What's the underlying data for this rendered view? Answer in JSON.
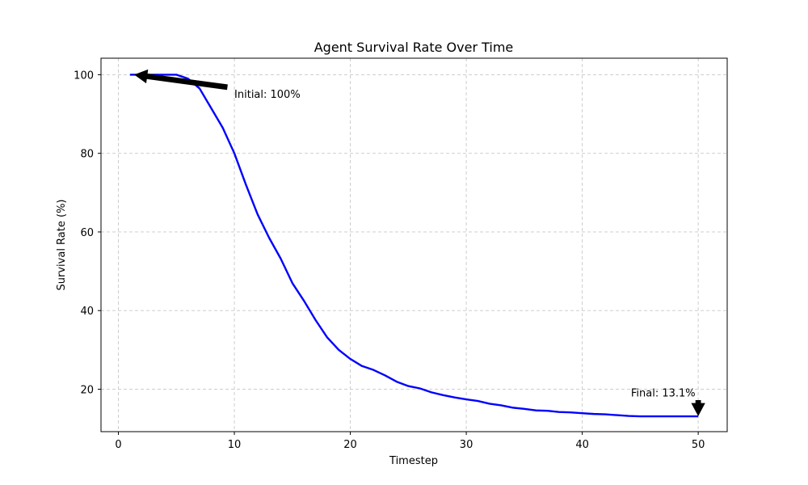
{
  "chart_data": {
    "type": "line",
    "title": "Agent Survival Rate Over Time",
    "xlabel": "Timestep",
    "ylabel": "Survival Rate (%)",
    "xlim": [
      -1.5,
      52.5
    ],
    "ylim": [
      9.2,
      104.2
    ],
    "xticks": [
      0,
      10,
      20,
      30,
      40,
      50
    ],
    "yticks": [
      20,
      40,
      60,
      80,
      100
    ],
    "grid": true,
    "line_color": "#0000ff",
    "series": [
      {
        "x": [
          1,
          2,
          3,
          4,
          5,
          6,
          7,
          8,
          9,
          10,
          11,
          12,
          13,
          14,
          15,
          16,
          17,
          18,
          19,
          20,
          21,
          22,
          23,
          24,
          25,
          26,
          27,
          28,
          29,
          30,
          31,
          32,
          33,
          34,
          35,
          36,
          37,
          38,
          39,
          40,
          41,
          42,
          43,
          44,
          45,
          46,
          47,
          48,
          49,
          50
        ],
        "y": [
          100,
          100,
          100,
          100,
          100,
          99,
          96.5,
          91.5,
          86.5,
          80,
          72,
          64.5,
          58.5,
          53.2,
          47,
          42.5,
          37.6,
          33.2,
          30,
          27.7,
          25.9,
          24.9,
          23.5,
          21.9,
          20.8,
          20.2,
          19.2,
          18.5,
          17.9,
          17.4,
          17,
          16.3,
          15.9,
          15.3,
          15,
          14.6,
          14.5,
          14.2,
          14.1,
          13.9,
          13.7,
          13.6,
          13.4,
          13.2,
          13.1,
          13.1,
          13.1,
          13.1,
          13.1,
          13.1
        ]
      }
    ],
    "annotations": [
      {
        "text": "Initial: 100%",
        "point": [
          1,
          100
        ],
        "text_pos": [
          10,
          95.2
        ]
      },
      {
        "text": "Final: 13.1%",
        "point": [
          50,
          13.1
        ],
        "text_pos": [
          44.2,
          19.2
        ]
      }
    ]
  }
}
